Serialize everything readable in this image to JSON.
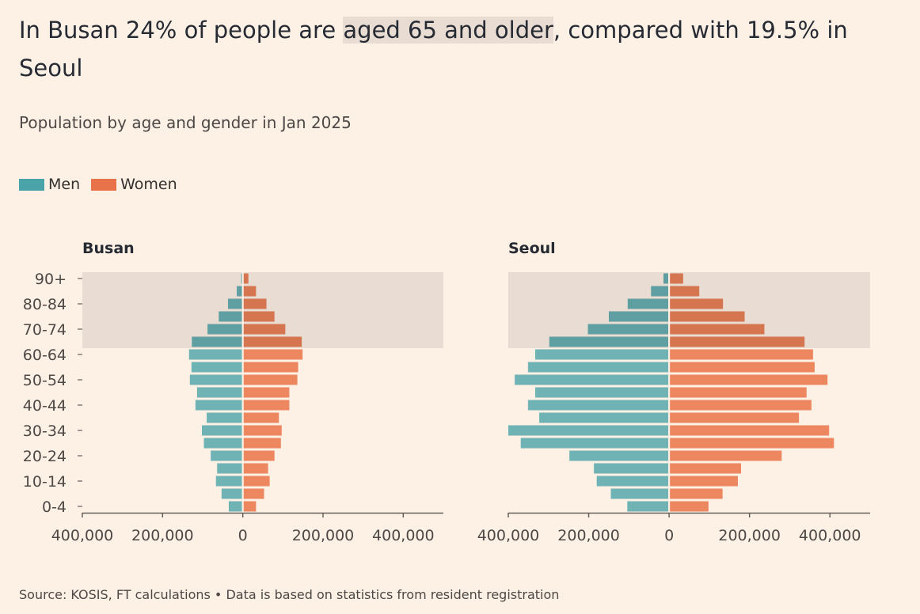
{
  "header": {
    "title_before": "In Busan 24% of people are ",
    "title_highlight": "aged 65 and older",
    "title_after": ", compared with 19.5% in Seoul",
    "subtitle": "Population by age and gender in Jan 2025"
  },
  "legend": {
    "men_label": "Men",
    "women_label": "Women"
  },
  "colors": {
    "men": "#4ba3aa",
    "women": "#e8734a",
    "men_light": "#6fb3b5",
    "women_light": "#ec8760",
    "men_dark": "#5f9fa2",
    "women_dark": "#d67651",
    "highlight_band": "#e9ddd3",
    "background": "#fdf1e6"
  },
  "source": "Source: KOSIS, FT calculations • Data is based on statistics from resident registration",
  "chart_data": [
    {
      "type": "bar",
      "title": "Busan",
      "orientation": "horizontal-pyramid",
      "categories": [
        "0-4",
        "5-9",
        "10-14",
        "15-19",
        "20-24",
        "25-29",
        "30-34",
        "35-39",
        "40-44",
        "45-49",
        "50-54",
        "55-59",
        "60-64",
        "65-69",
        "70-74",
        "75-79",
        "80-84",
        "85-89",
        "90+"
      ],
      "category_tick_labels": [
        "0-4",
        "10-14",
        "20-24",
        "30-34",
        "40-44",
        "50-54",
        "60-64",
        "70-74",
        "80-84",
        "90+"
      ],
      "highlight_categories": [
        "65-69",
        "70-74",
        "75-79",
        "80-84",
        "85-89",
        "90+"
      ],
      "series": [
        {
          "name": "Men",
          "values": [
            35000,
            53000,
            67000,
            64000,
            80000,
            97000,
            102000,
            90000,
            118000,
            114000,
            132000,
            128000,
            134000,
            127000,
            88000,
            60000,
            37000,
            15000,
            4000
          ]
        },
        {
          "name": "Women",
          "values": [
            33000,
            53000,
            67000,
            63000,
            79000,
            95000,
            97000,
            90000,
            116000,
            116000,
            136000,
            138000,
            149000,
            147000,
            106000,
            79000,
            59000,
            33000,
            14000
          ]
        }
      ],
      "xlim": [
        -400000,
        500000
      ],
      "xticks": [
        -400000,
        -200000,
        0,
        200000,
        400000
      ],
      "xtick_labels": [
        "400,000",
        "200,000",
        "0",
        "200,000",
        "400,000"
      ]
    },
    {
      "type": "bar",
      "title": "Seoul",
      "orientation": "horizontal-pyramid",
      "categories": [
        "0-4",
        "5-9",
        "10-14",
        "15-19",
        "20-24",
        "25-29",
        "30-34",
        "35-39",
        "40-44",
        "45-49",
        "50-54",
        "55-59",
        "60-64",
        "65-69",
        "70-74",
        "75-79",
        "80-84",
        "85-89",
        "90+"
      ],
      "category_tick_labels": [
        "0-4",
        "10-14",
        "20-24",
        "30-34",
        "40-44",
        "50-54",
        "60-64",
        "70-74",
        "80-84",
        "90+"
      ],
      "highlight_categories": [
        "65-69",
        "70-74",
        "75-79",
        "80-84",
        "85-89",
        "90+"
      ],
      "series": [
        {
          "name": "Men",
          "values": [
            104000,
            145000,
            180000,
            187000,
            248000,
            369000,
            400000,
            323000,
            351000,
            333000,
            384000,
            351000,
            333000,
            298000,
            202000,
            150000,
            103000,
            45000,
            14000
          ]
        },
        {
          "name": "Women",
          "values": [
            98000,
            133000,
            171000,
            179000,
            280000,
            410000,
            398000,
            323000,
            354000,
            342000,
            394000,
            362000,
            358000,
            337000,
            237000,
            188000,
            134000,
            75000,
            35000
          ]
        }
      ],
      "xlim": [
        -400000,
        500000
      ],
      "xticks": [
        -400000,
        -200000,
        0,
        200000,
        400000
      ],
      "xtick_labels": [
        "400,000",
        "200,000",
        "0",
        "200,000",
        "400,000"
      ]
    }
  ]
}
